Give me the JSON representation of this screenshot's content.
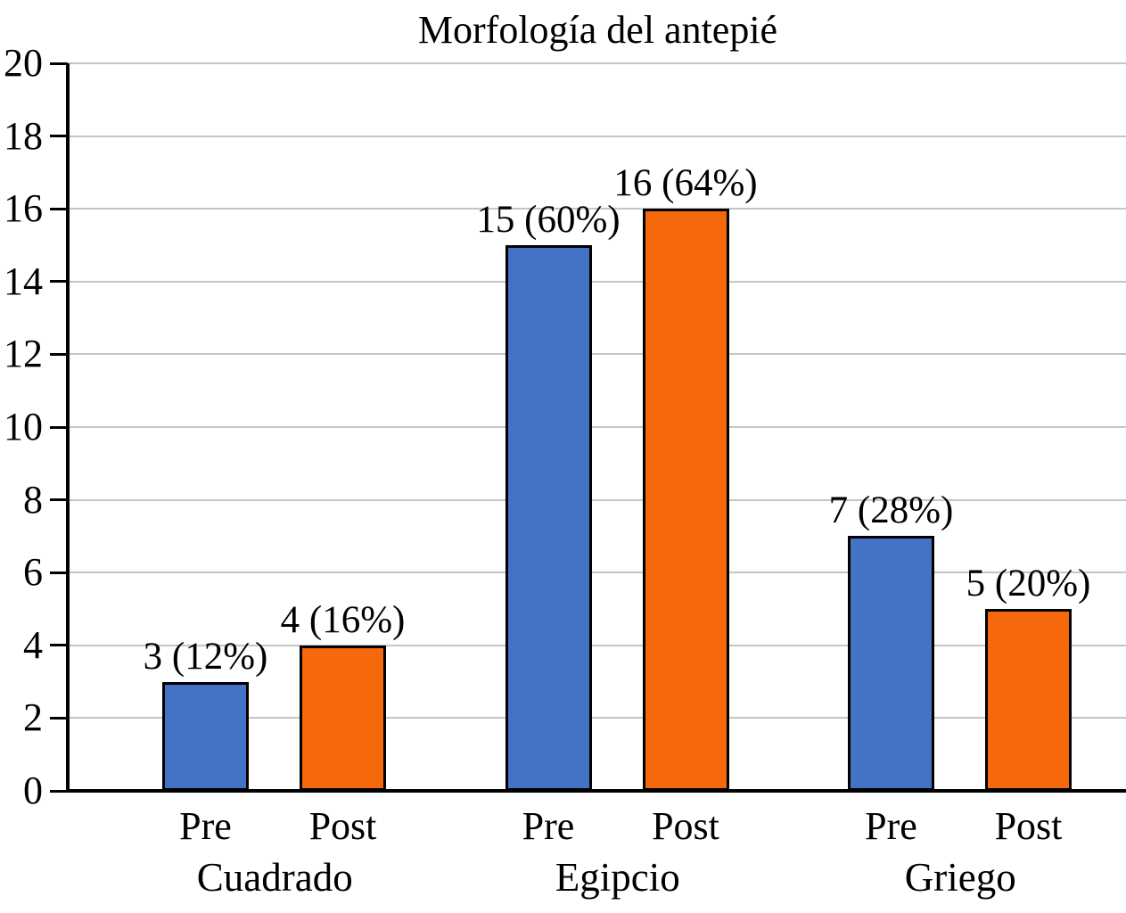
{
  "chart_data": {
    "type": "bar",
    "title": "Morfología del antepié",
    "categories": [
      "Cuadrado",
      "Egipcio",
      "Griego"
    ],
    "series": [
      {
        "name": "Pre",
        "color": "#4472C4",
        "values": [
          3,
          15,
          7
        ],
        "data_labels": [
          "3 (12%)",
          "15 (60%)",
          "7 (28%)"
        ]
      },
      {
        "name": "Post",
        "color": "#F5690C",
        "values": [
          4,
          16,
          5
        ],
        "data_labels": [
          "4 (16%)",
          "16 (64%)",
          "5 (20%)"
        ]
      }
    ],
    "xlabel": "",
    "ylabel": "",
    "ylim": [
      0,
      20
    ],
    "yticks": [
      0,
      2,
      4,
      6,
      8,
      10,
      12,
      14,
      16,
      18,
      20
    ],
    "grid": true,
    "legend": "none",
    "colors": {
      "gridline": "#c5c5c5",
      "axis": "#000000",
      "bar_outline": "#000000",
      "text": "#000000",
      "background": "#ffffff"
    }
  }
}
